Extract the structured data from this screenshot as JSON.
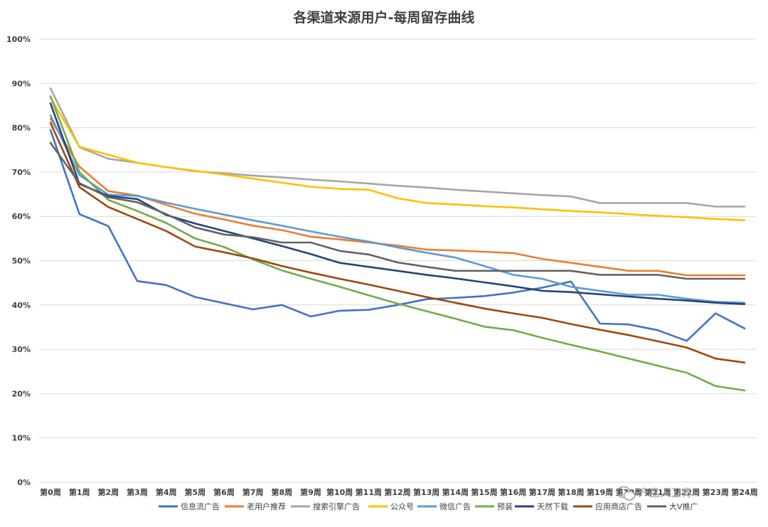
{
  "chart_data": {
    "type": "line",
    "title": "各渠道来源用户-每周留存曲线",
    "x": [
      "第0周",
      "第1周",
      "第2周",
      "第3周",
      "第4周",
      "第5周",
      "第6周",
      "第7周",
      "第8周",
      "第9周",
      "第10周",
      "第11周",
      "第12周",
      "第13周",
      "第14周",
      "第15周",
      "第16周",
      "第17周",
      "第18周",
      "第19周",
      "第20周",
      "第21周",
      "第22周",
      "第23周",
      "第24周"
    ],
    "ylim": [
      0,
      100
    ],
    "yticks": [
      "0%",
      "10%",
      "20%",
      "30%",
      "40%",
      "50%",
      "60%",
      "70%",
      "80%",
      "90%",
      "100%"
    ],
    "grid": true,
    "legend_position": "bottom",
    "series": [
      {
        "name": "信息流广告",
        "color": "#4472C4",
        "values": [
          79.5,
          60.5,
          57.8,
          45.4,
          44.5,
          41.8,
          40.4,
          39.0,
          40.0,
          37.4,
          38.7,
          38.9,
          40.0,
          41.3,
          41.6,
          42.0,
          42.8,
          43.9,
          45.3,
          35.8,
          35.6,
          34.3,
          31.9,
          38.1,
          34.7
        ]
      },
      {
        "name": "老用户推荐",
        "color": "#ED7D31",
        "values": [
          82.0,
          71.2,
          65.7,
          64.7,
          62.6,
          60.6,
          59.3,
          57.9,
          56.9,
          55.4,
          54.8,
          54.1,
          53.4,
          52.5,
          52.3,
          52.0,
          51.7,
          50.4,
          49.5,
          48.6,
          47.7,
          47.7,
          46.7,
          46.7,
          46.7
        ]
      },
      {
        "name": "搜索引擎广告",
        "color": "#A5A5A5",
        "values": [
          88.9,
          75.6,
          73.0,
          72.1,
          71.1,
          70.2,
          69.7,
          69.2,
          68.8,
          68.3,
          67.9,
          67.4,
          66.9,
          66.5,
          66.0,
          65.6,
          65.2,
          64.8,
          64.5,
          63.0,
          63.0,
          63.0,
          63.0,
          62.2,
          62.2
        ]
      },
      {
        "name": "公众号",
        "color": "#FFC000",
        "values": [
          86.8,
          75.7,
          73.9,
          72.1,
          71.1,
          70.3,
          69.4,
          68.5,
          67.6,
          66.7,
          66.2,
          66.0,
          64.1,
          63.0,
          62.7,
          62.3,
          62.0,
          61.6,
          61.2,
          60.9,
          60.5,
          60.1,
          59.8,
          59.4,
          59.1
        ]
      },
      {
        "name": "微信广告",
        "color": "#5B9BD5",
        "values": [
          82.8,
          69.3,
          64.9,
          64.6,
          63.1,
          61.7,
          60.4,
          59.1,
          57.9,
          56.6,
          55.4,
          54.3,
          53.0,
          51.8,
          50.7,
          48.8,
          46.8,
          45.9,
          44.1,
          43.2,
          42.3,
          42.3,
          41.4,
          40.7,
          40.5
        ]
      },
      {
        "name": "预装",
        "color": "#70AD47",
        "values": [
          87.1,
          70.0,
          63.7,
          61.2,
          58.5,
          55.0,
          53.1,
          50.3,
          47.8,
          45.9,
          44.1,
          42.2,
          40.3,
          38.6,
          36.9,
          35.1,
          34.3,
          32.6,
          31.0,
          29.5,
          27.9,
          26.3,
          24.7,
          21.7,
          20.7
        ]
      },
      {
        "name": "天然下载",
        "color": "#264478",
        "values": [
          85.5,
          67.3,
          64.6,
          63.9,
          60.3,
          58.4,
          56.7,
          55.0,
          53.3,
          51.5,
          49.5,
          48.6,
          47.7,
          46.8,
          46.0,
          45.1,
          44.2,
          43.2,
          42.9,
          42.4,
          41.9,
          41.4,
          41.0,
          40.5,
          40.2
        ]
      },
      {
        "name": "应用商店广告",
        "color": "#9E480E",
        "values": [
          81.1,
          66.6,
          62.1,
          59.4,
          56.7,
          53.2,
          51.9,
          50.5,
          48.8,
          47.3,
          45.9,
          44.6,
          43.2,
          41.8,
          40.5,
          39.2,
          38.1,
          37.1,
          35.7,
          34.4,
          33.2,
          31.8,
          30.4,
          27.9,
          27.0
        ]
      },
      {
        "name": "大V推广",
        "color": "#636363",
        "values": [
          76.6,
          67.5,
          64.3,
          63.2,
          60.5,
          57.5,
          55.9,
          55.3,
          54.1,
          54.1,
          52.2,
          51.4,
          49.6,
          48.6,
          47.7,
          47.7,
          47.7,
          47.7,
          47.7,
          46.8,
          46.8,
          46.8,
          45.9,
          45.9,
          45.9
        ]
      }
    ]
  },
  "watermark": {
    "text": "产品人卫青",
    "icon": "wechat-icon"
  }
}
